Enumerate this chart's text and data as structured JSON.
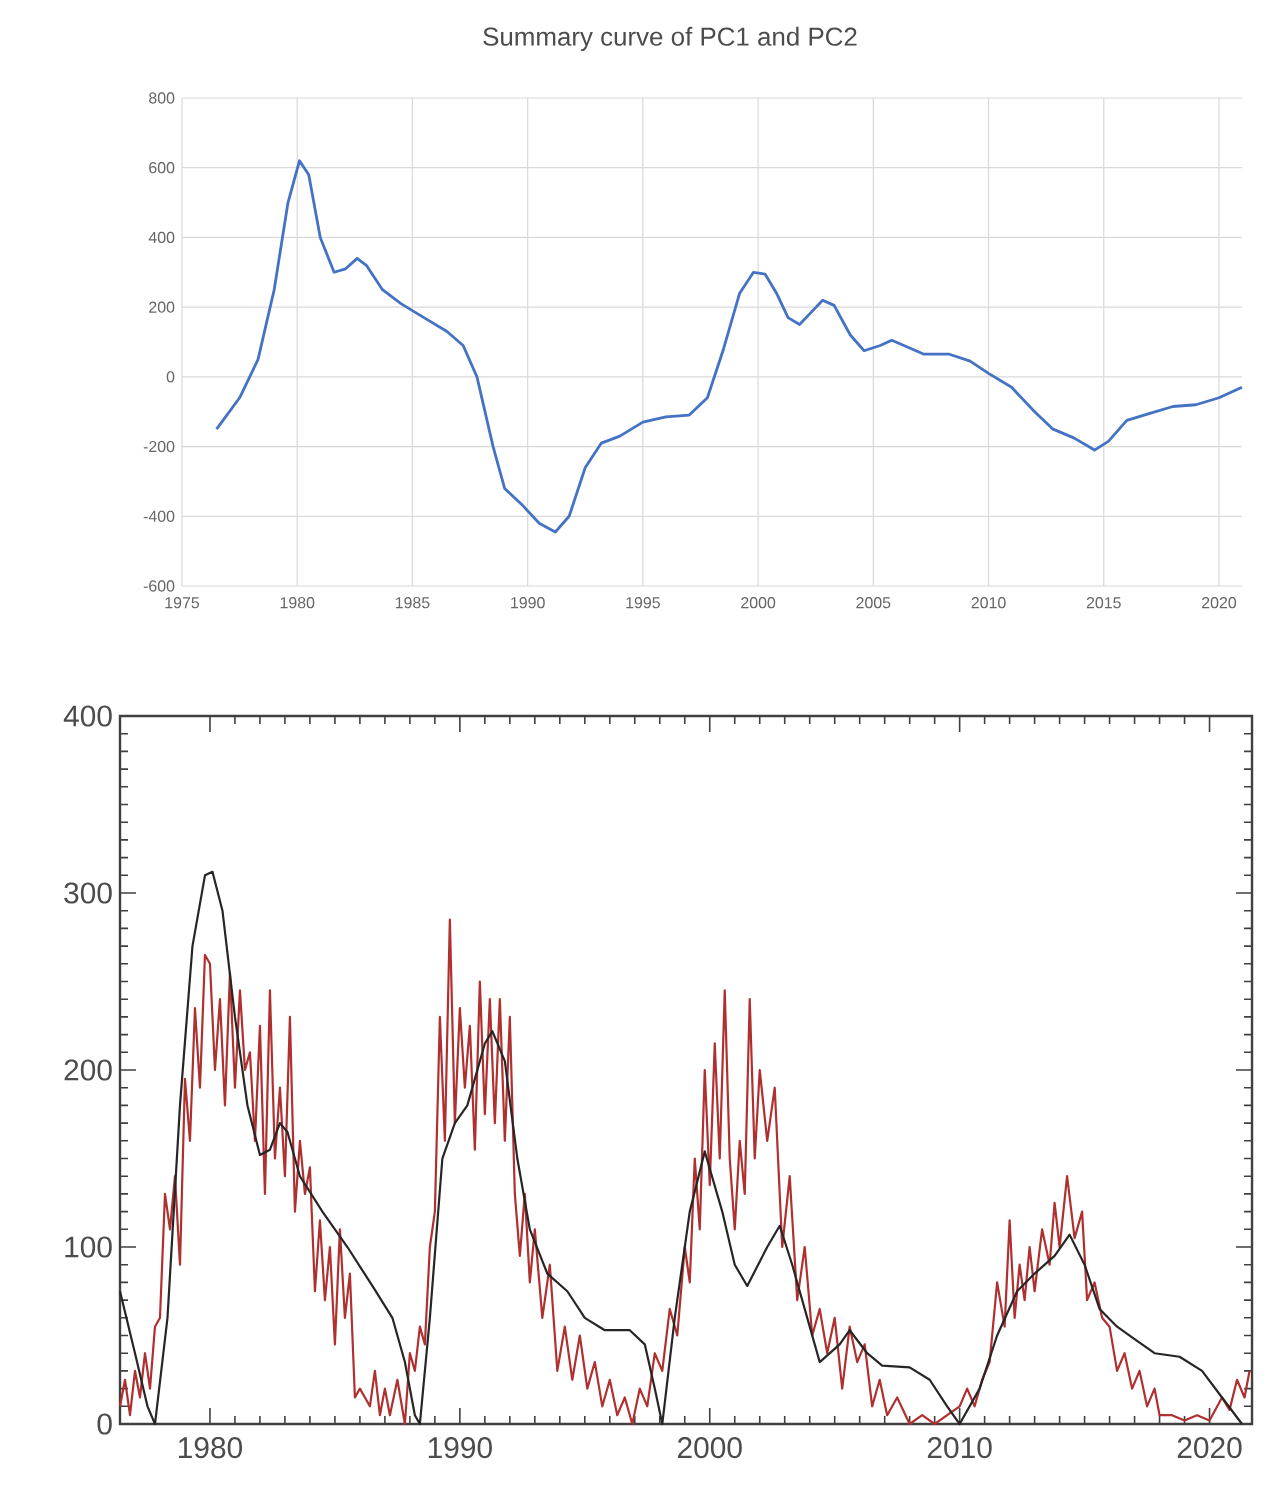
{
  "chart_data": [
    {
      "type": "line",
      "title": "Summary curve of PC1 and PC2",
      "xlim": [
        1975,
        2021
      ],
      "ylim": [
        -600,
        800
      ],
      "xticks": [
        1975,
        1980,
        1985,
        1990,
        1995,
        2000,
        2005,
        2010,
        2015,
        2020
      ],
      "yticks": [
        -600,
        -400,
        -200,
        0,
        200,
        400,
        600,
        800
      ],
      "grid": true,
      "series": [
        {
          "color": "#4472c4",
          "x": [
            1976.5,
            1977.5,
            1978.3,
            1979,
            1979.6,
            1980.1,
            1980.5,
            1981,
            1981.6,
            1982.1,
            1982.6,
            1983,
            1983.7,
            1984.5,
            1985.5,
            1986.5,
            1987.2,
            1987.8,
            1988.5,
            1989,
            1989.8,
            1990.5,
            1991.2,
            1991.8,
            1992.5,
            1993.2,
            1994,
            1995,
            1996,
            1997,
            1997.8,
            1998.5,
            1999.2,
            1999.8,
            2000.3,
            2000.8,
            2001.3,
            2001.8,
            2002.3,
            2002.8,
            2003.3,
            2004,
            2004.6,
            2005.3,
            2005.8,
            2006.5,
            2007.2,
            2008.3,
            2009.2,
            2010,
            2011,
            2012,
            2012.8,
            2013.7,
            2014.6,
            2015.2,
            2016,
            2017,
            2018,
            2019,
            2020,
            2021
          ],
          "values": [
            -150,
            -60,
            50,
            250,
            500,
            620,
            580,
            400,
            300,
            310,
            340,
            320,
            250,
            210,
            170,
            130,
            90,
            0,
            -200,
            -320,
            -370,
            -420,
            -445,
            -400,
            -260,
            -190,
            -170,
            -130,
            -115,
            -110,
            -60,
            80,
            240,
            300,
            295,
            240,
            170,
            150,
            185,
            220,
            205,
            120,
            75,
            90,
            105,
            85,
            65,
            65,
            45,
            10,
            -30,
            -100,
            -150,
            -175,
            -210,
            -185,
            -125,
            -105,
            -85,
            -80,
            -60,
            -30
          ]
        }
      ]
    },
    {
      "type": "line",
      "xlim": [
        1976.4,
        2021.7
      ],
      "ylim": [
        0,
        400
      ],
      "xticks": [
        1980,
        1990,
        2000,
        2010,
        2020
      ],
      "yticks": [
        0,
        100,
        200,
        300,
        400
      ],
      "series": [
        {
          "color": "#b03030",
          "x": [
            1976.4,
            1976.6,
            1976.8,
            1977,
            1977.2,
            1977.4,
            1977.6,
            1977.8,
            1978,
            1978.2,
            1978.4,
            1978.6,
            1978.8,
            1979,
            1979.2,
            1979.4,
            1979.6,
            1979.8,
            1980,
            1980.2,
            1980.4,
            1980.6,
            1980.8,
            1981,
            1981.2,
            1981.4,
            1981.6,
            1981.8,
            1982,
            1982.2,
            1982.4,
            1982.6,
            1982.8,
            1983,
            1983.2,
            1983.4,
            1983.6,
            1983.8,
            1984,
            1984.2,
            1984.4,
            1984.6,
            1984.8,
            1985,
            1985.2,
            1985.4,
            1985.6,
            1985.8,
            1986,
            1986.4,
            1986.6,
            1986.8,
            1987,
            1987.2,
            1987.5,
            1987.8,
            1988,
            1988.2,
            1988.4,
            1988.6,
            1988.8,
            1989,
            1989.2,
            1989.4,
            1989.6,
            1989.8,
            1990,
            1990.2,
            1990.4,
            1990.6,
            1990.8,
            1991,
            1991.2,
            1991.4,
            1991.6,
            1991.8,
            1992,
            1992.2,
            1992.4,
            1992.6,
            1992.8,
            1993,
            1993.3,
            1993.6,
            1993.9,
            1994.2,
            1994.5,
            1994.8,
            1995.1,
            1995.4,
            1995.7,
            1996,
            1996.3,
            1996.6,
            1996.9,
            1997.2,
            1997.5,
            1997.8,
            1998.1,
            1998.4,
            1998.7,
            1999,
            1999.2,
            1999.4,
            1999.6,
            1999.8,
            2000,
            2000.2,
            2000.4,
            2000.6,
            2000.8,
            2001,
            2001.2,
            2001.4,
            2001.6,
            2001.8,
            2002,
            2002.3,
            2002.6,
            2002.9,
            2003.2,
            2003.5,
            2003.8,
            2004.1,
            2004.4,
            2004.7,
            2005,
            2005.3,
            2005.6,
            2005.9,
            2006.2,
            2006.5,
            2006.8,
            2007.1,
            2007.5,
            2008,
            2008.5,
            2009,
            2009.5,
            2010,
            2010.3,
            2010.6,
            2010.9,
            2011.2,
            2011.5,
            2011.8,
            2012,
            2012.2,
            2012.4,
            2012.6,
            2012.8,
            2013,
            2013.3,
            2013.6,
            2013.8,
            2014,
            2014.3,
            2014.6,
            2014.9,
            2015.1,
            2015.4,
            2015.7,
            2016,
            2016.3,
            2016.6,
            2016.9,
            2017.2,
            2017.5,
            2017.8,
            2018,
            2018.5,
            2019,
            2019.5,
            2020,
            2020.5,
            2020.8,
            2021.1,
            2021.4,
            2021.6
          ],
          "values": [
            10,
            25,
            5,
            30,
            15,
            40,
            20,
            55,
            60,
            130,
            110,
            140,
            90,
            195,
            160,
            235,
            190,
            265,
            260,
            200,
            240,
            180,
            255,
            190,
            245,
            200,
            210,
            160,
            225,
            130,
            245,
            150,
            190,
            140,
            230,
            120,
            160,
            130,
            145,
            75,
            115,
            70,
            100,
            45,
            110,
            60,
            85,
            15,
            20,
            10,
            30,
            5,
            20,
            5,
            25,
            0,
            40,
            30,
            55,
            45,
            100,
            120,
            230,
            160,
            285,
            170,
            235,
            190,
            225,
            155,
            250,
            175,
            240,
            170,
            240,
            160,
            230,
            130,
            95,
            130,
            80,
            110,
            60,
            90,
            30,
            55,
            25,
            50,
            20,
            35,
            10,
            25,
            5,
            15,
            0,
            20,
            10,
            40,
            30,
            65,
            50,
            100,
            80,
            150,
            110,
            200,
            135,
            215,
            150,
            245,
            150,
            110,
            160,
            130,
            240,
            150,
            200,
            160,
            190,
            100,
            140,
            70,
            100,
            50,
            65,
            40,
            60,
            20,
            55,
            35,
            45,
            10,
            25,
            5,
            15,
            0,
            5,
            0,
            5,
            10,
            20,
            10,
            25,
            35,
            80,
            55,
            115,
            60,
            90,
            70,
            100,
            75,
            110,
            90,
            125,
            100,
            140,
            105,
            120,
            70,
            80,
            60,
            55,
            30,
            40,
            20,
            30,
            10,
            20,
            5,
            5,
            2,
            5,
            2,
            15,
            8,
            25,
            15,
            30
          ]
        },
        {
          "color": "#262626",
          "x": [
            1976.4,
            1977,
            1977.5,
            1977.8,
            1978.3,
            1978.8,
            1979.3,
            1979.8,
            1980.1,
            1980.5,
            1981,
            1981.5,
            1982,
            1982.4,
            1982.8,
            1983.1,
            1983.6,
            1984.5,
            1985.5,
            1986.5,
            1987.3,
            1987.8,
            1988.2,
            1988.4,
            1988.8,
            1989.3,
            1989.8,
            1990.3,
            1991,
            1991.3,
            1991.8,
            1992.3,
            1992.8,
            1993.5,
            1994.3,
            1995,
            1995.8,
            1996.8,
            1997.4,
            1997.8,
            1998.1,
            1998.6,
            1999.2,
            1999.8,
            2000.5,
            2001,
            2001.5,
            2002.3,
            2002.8,
            2003.3,
            2004,
            2004.4,
            2005.2,
            2005.6,
            2006.3,
            2006.9,
            2008,
            2008.8,
            2009.5,
            2010,
            2010.8,
            2011.5,
            2012.3,
            2013,
            2013.8,
            2014.4,
            2015,
            2015.6,
            2016.3,
            2017,
            2017.8,
            2018.8,
            2019.7,
            2020.5,
            2021.3
          ],
          "values": [
            75,
            40,
            10,
            0,
            60,
            180,
            270,
            310,
            312,
            290,
            230,
            180,
            152,
            155,
            170,
            165,
            140,
            120,
            100,
            78,
            60,
            35,
            5,
            0,
            60,
            150,
            170,
            180,
            215,
            222,
            205,
            150,
            110,
            85,
            75,
            60,
            53,
            53,
            45,
            20,
            0,
            60,
            120,
            154,
            120,
            90,
            78,
            100,
            112,
            90,
            55,
            35,
            45,
            53,
            40,
            33,
            32,
            25,
            10,
            0,
            20,
            50,
            75,
            85,
            95,
            107,
            90,
            65,
            55,
            48,
            40,
            38,
            30,
            15,
            0
          ]
        }
      ]
    }
  ]
}
